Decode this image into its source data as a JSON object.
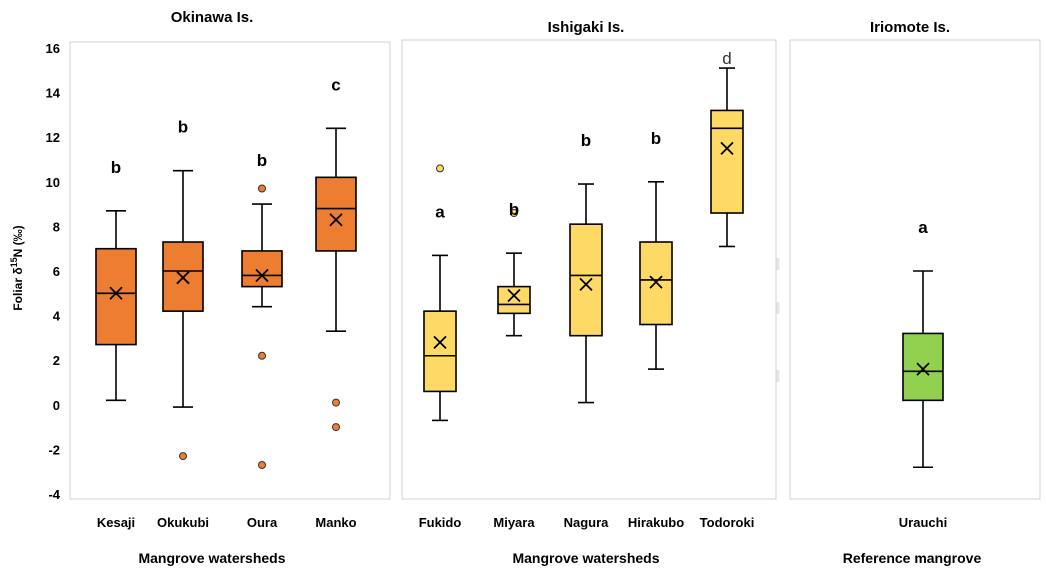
{
  "chart_data": {
    "type": "box",
    "ylabel": "Foliar δ¹⁵N (‰)",
    "ylim": [
      -4,
      16
    ],
    "yticks": [
      -4,
      -2,
      0,
      2,
      4,
      6,
      8,
      10,
      12,
      14,
      16
    ],
    "grid": false,
    "colors": {
      "okinawa": "#ed7d31",
      "ishigaki": "#ffd966",
      "iriomote": "#92d050"
    },
    "panels": [
      {
        "title": "Okinawa Is.",
        "xlabel": "Mangrove watersheds",
        "color": "#ed7d31",
        "boxes": [
          {
            "category": "Kesaji",
            "min": 0.2,
            "q1": 2.7,
            "median": 5.0,
            "q3": 7.0,
            "max": 8.7,
            "mean": 5.0,
            "outliers": [],
            "letter": "b"
          },
          {
            "category": "Okukubi",
            "min": -0.1,
            "q1": 4.2,
            "median": 6.0,
            "q3": 7.3,
            "max": 10.5,
            "mean": 5.7,
            "outliers": [
              -2.3
            ],
            "letter": "b"
          },
          {
            "category": "Oura",
            "min": 4.4,
            "q1": 5.3,
            "median": 5.8,
            "q3": 6.9,
            "max": 9.0,
            "mean": 5.8,
            "outliers": [
              9.7,
              2.2,
              -2.7
            ],
            "letter": "b"
          },
          {
            "category": "Manko",
            "min": 3.3,
            "q1": 6.9,
            "median": 8.8,
            "q3": 10.2,
            "max": 12.4,
            "mean": 8.3,
            "outliers": [
              0.1,
              -1.0
            ],
            "letter": "c"
          }
        ]
      },
      {
        "title": "Ishigaki Is.",
        "xlabel": "Mangrove watersheds",
        "color": "#ffd966",
        "boxes": [
          {
            "category": "Fukido",
            "min": -0.7,
            "q1": 0.6,
            "median": 2.2,
            "q3": 4.2,
            "max": 6.7,
            "mean": 2.8,
            "outliers": [
              10.6
            ],
            "letter": "a"
          },
          {
            "category": "Miyara",
            "min": 3.1,
            "q1": 4.1,
            "median": 4.5,
            "q3": 5.3,
            "max": 6.8,
            "mean": 4.9,
            "outliers": [
              8.6
            ],
            "letter": "b"
          },
          {
            "category": "Nagura",
            "min": 0.1,
            "q1": 3.1,
            "median": 5.8,
            "q3": 8.1,
            "max": 9.9,
            "mean": 5.4,
            "outliers": [],
            "letter": "b"
          },
          {
            "category": "Hirakubo",
            "min": 1.6,
            "q1": 3.6,
            "median": 5.6,
            "q3": 7.3,
            "max": 10.0,
            "mean": 5.5,
            "outliers": [],
            "letter": "b"
          },
          {
            "category": "Todoroki",
            "min": 7.1,
            "q1": 8.6,
            "median": 12.4,
            "q3": 13.2,
            "max": 15.1,
            "mean": 11.5,
            "outliers": [],
            "letter": "d"
          }
        ]
      },
      {
        "title": "Iriomote Is.",
        "xlabel": "Reference mangrove",
        "color": "#92d050",
        "boxes": [
          {
            "category": "Urauchi",
            "min": -2.8,
            "q1": 0.2,
            "median": 1.5,
            "q3": 3.2,
            "max": 6.0,
            "mean": 1.6,
            "outliers": [],
            "letter": "a"
          }
        ]
      }
    ]
  }
}
